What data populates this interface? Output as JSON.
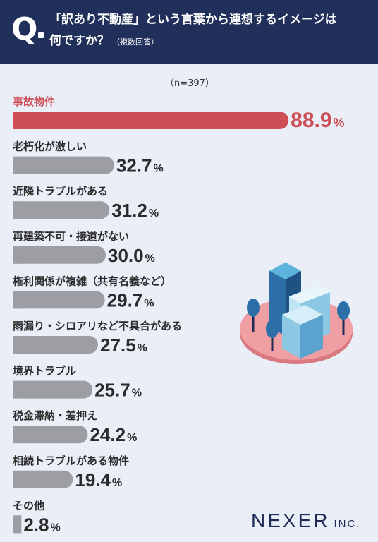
{
  "question": {
    "mark": "Q",
    "line1": "「訳あり不動産」という言葉から連想するイメージは",
    "line2": "何ですか？",
    "note": "（複数回答）"
  },
  "sample": "（n=397）",
  "brand": {
    "name": "NEXER",
    "suffix": "INC."
  },
  "colors": {
    "header": "#21305a",
    "highlight": "#cd4f55",
    "bar": "#9d9ea3",
    "background": "#e9eef7"
  },
  "chart_data": {
    "type": "bar",
    "orientation": "horizontal",
    "unit": "%",
    "categories": [
      "事故物件",
      "老朽化が激しい",
      "近隣トラブルがある",
      "再建築不可・接道がない",
      "権利関係が複雑（共有名義など）",
      "雨漏り・シロアリなど不具合がある",
      "境界トラブル",
      "税金滞納・差押え",
      "相続トラブルがある物件",
      "その他"
    ],
    "values": [
      88.9,
      32.7,
      31.2,
      30.0,
      29.7,
      27.5,
      25.7,
      24.2,
      19.4,
      2.8
    ],
    "value_labels": [
      "88.9",
      "32.7",
      "31.2",
      "30.0",
      "29.7",
      "27.5",
      "25.7",
      "24.2",
      "19.4",
      "2.8"
    ],
    "highlight_index": 0,
    "xlim": [
      0,
      100
    ]
  }
}
